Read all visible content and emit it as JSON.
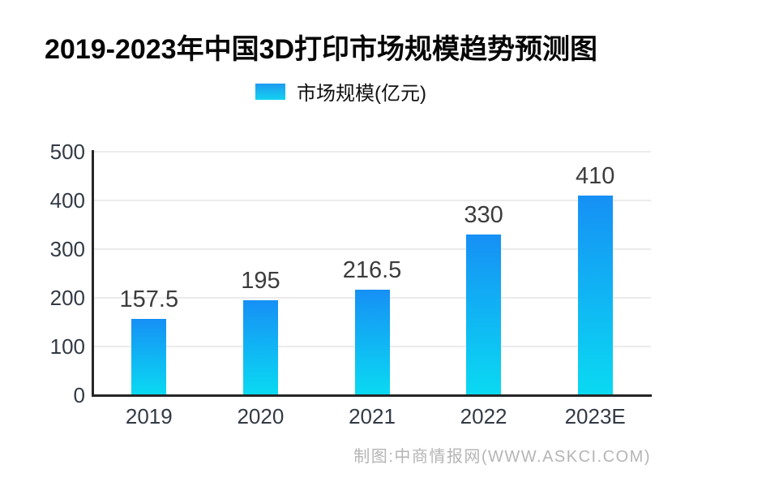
{
  "header": {
    "title": "2019-2023年中国3D打印市场规模趋势预测图"
  },
  "legend": {
    "label": "市场规模(亿元)",
    "swatch_color_top": "#1E9BF0",
    "swatch_color_bottom": "#14D2F0"
  },
  "chart_data": {
    "type": "bar",
    "title": "2019-2023年中国3D打印市场规模趋势预测图",
    "legend_entries": [
      "市场规模(亿元)"
    ],
    "legend_position": "top-center",
    "categories": [
      "2019",
      "2020",
      "2021",
      "2022",
      "2023E"
    ],
    "values": [
      157.5,
      195,
      216.5,
      330,
      410
    ],
    "data_labels": [
      "157.5",
      "195",
      "216.5",
      "330",
      "410"
    ],
    "xlabel": "",
    "ylabel": "",
    "ylim": [
      0,
      500
    ],
    "yticks": [
      0,
      100,
      200,
      300,
      400,
      500
    ],
    "grid": "horizontal",
    "bar_color_top": "#1690F5",
    "bar_color_bottom": "#0ADAF2",
    "gridline_color": "#ebebeb",
    "axis_color": "#262626",
    "label_color": "#3c3c3c"
  },
  "footer": {
    "credit": "制图:中商情报网(WWW.ASKCI.COM)"
  }
}
